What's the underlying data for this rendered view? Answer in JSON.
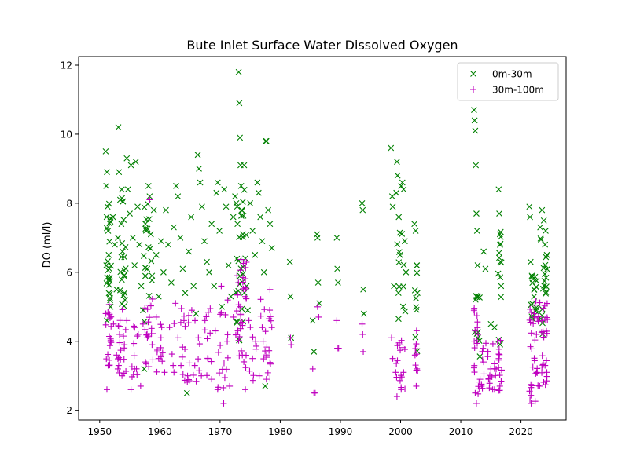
{
  "chart_data": {
    "type": "scatter",
    "title": "Bute Inlet Surface Water Dissolved Oxygen",
    "xlabel": "",
    "ylabel": "DO (ml/l)",
    "xlim": [
      1946.5,
      2027.5
    ],
    "ylim": [
      1.72,
      12.25
    ],
    "xticks": [
      1950,
      1960,
      1970,
      1980,
      1990,
      2000,
      2010,
      2020
    ],
    "yticks": [
      2,
      4,
      6,
      8,
      10,
      12
    ],
    "grid": false,
    "legend": "top-right",
    "series": [
      {
        "name": "0m-30m",
        "marker": "x",
        "color": "#008000",
        "points": [
          [
            1951.0,
            9.5
          ],
          [
            1951.2,
            8.9
          ],
          [
            1951.1,
            8.5
          ],
          [
            1951.3,
            7.9
          ],
          [
            1951.4,
            7.2
          ],
          [
            1951.5,
            6.5
          ],
          [
            1951.6,
            5.8
          ],
          [
            1951.8,
            5.0
          ],
          [
            1951.2,
            4.6
          ],
          [
            1951.6,
            6.1
          ],
          [
            1952.2,
            7.6
          ],
          [
            1952.5,
            6.8
          ],
          [
            1952.8,
            5.5
          ],
          [
            1953.1,
            10.2
          ],
          [
            1953.2,
            8.9
          ],
          [
            1953.4,
            8.1
          ],
          [
            1953.6,
            7.4
          ],
          [
            1953.8,
            6.6
          ],
          [
            1954.0,
            5.9
          ],
          [
            1954.2,
            5.2
          ],
          [
            1954.5,
            9.3
          ],
          [
            1954.7,
            8.4
          ],
          [
            1955.0,
            7.7
          ],
          [
            1955.2,
            9.1
          ],
          [
            1955.5,
            7.0
          ],
          [
            1955.8,
            6.2
          ],
          [
            1956.0,
            9.2
          ],
          [
            1956.3,
            7.9
          ],
          [
            1956.6,
            6.8
          ],
          [
            1956.9,
            5.6
          ],
          [
            1957.2,
            4.9
          ],
          [
            1957.4,
            3.2
          ],
          [
            1957.6,
            7.4
          ],
          [
            1957.9,
            6.1
          ],
          [
            1958.1,
            8.5
          ],
          [
            1958.3,
            8.2
          ],
          [
            1958.5,
            7.1
          ],
          [
            1958.7,
            5.9
          ],
          [
            1959.0,
            7.8
          ],
          [
            1959.4,
            6.5
          ],
          [
            1959.8,
            5.3
          ],
          [
            1960.2,
            6.9
          ],
          [
            1960.6,
            6.0
          ],
          [
            1961.0,
            7.8
          ],
          [
            1961.4,
            6.8
          ],
          [
            1961.9,
            5.7
          ],
          [
            1962.3,
            7.3
          ],
          [
            1962.7,
            8.5
          ],
          [
            1963.0,
            8.2
          ],
          [
            1963.4,
            7.0
          ],
          [
            1963.8,
            6.1
          ],
          [
            1964.2,
            5.4
          ],
          [
            1964.5,
            2.5
          ],
          [
            1964.8,
            6.6
          ],
          [
            1965.2,
            7.6
          ],
          [
            1965.6,
            5.6
          ],
          [
            1966.0,
            4.8
          ],
          [
            1966.3,
            9.4
          ],
          [
            1966.5,
            9.0
          ],
          [
            1966.7,
            8.6
          ],
          [
            1967.0,
            7.9
          ],
          [
            1967.4,
            6.9
          ],
          [
            1967.8,
            6.3
          ],
          [
            1968.2,
            6.0
          ],
          [
            1968.6,
            7.4
          ],
          [
            1969.0,
            5.6
          ],
          [
            1969.4,
            8.3
          ],
          [
            1969.6,
            8.6
          ],
          [
            1969.9,
            7.2
          ],
          [
            1970.3,
            5.0
          ],
          [
            1970.7,
            8.4
          ],
          [
            1971.0,
            7.9
          ],
          [
            1971.4,
            6.2
          ],
          [
            1971.8,
            5.3
          ],
          [
            1972.2,
            7.6
          ],
          [
            1972.5,
            8.2
          ],
          [
            1972.7,
            8.0
          ],
          [
            1972.9,
            7.4
          ],
          [
            1973.1,
            11.8
          ],
          [
            1973.2,
            10.9
          ],
          [
            1973.3,
            9.9
          ],
          [
            1973.4,
            9.1
          ],
          [
            1973.5,
            8.5
          ],
          [
            1973.6,
            7.8
          ],
          [
            1973.8,
            7.1
          ],
          [
            1974.0,
            9.1
          ],
          [
            1974.2,
            6.4
          ],
          [
            1974.4,
            5.6
          ],
          [
            1974.6,
            4.9
          ],
          [
            1975.0,
            8.0
          ],
          [
            1975.4,
            7.2
          ],
          [
            1975.8,
            6.5
          ],
          [
            1976.2,
            8.6
          ],
          [
            1976.4,
            8.3
          ],
          [
            1976.7,
            7.6
          ],
          [
            1977.0,
            6.9
          ],
          [
            1977.3,
            6.0
          ],
          [
            1977.5,
            2.7
          ],
          [
            1977.6,
            9.8
          ],
          [
            1977.7,
            9.8
          ],
          [
            1978.0,
            7.8
          ],
          [
            1978.3,
            7.4
          ],
          [
            1978.6,
            6.7
          ],
          [
            1981.6,
            6.3
          ],
          [
            1981.7,
            5.3
          ],
          [
            1981.8,
            4.1
          ],
          [
            1985.4,
            4.6
          ],
          [
            1985.6,
            3.7
          ],
          [
            1986.1,
            7.1
          ],
          [
            1986.2,
            7.0
          ],
          [
            1986.3,
            5.7
          ],
          [
            1986.5,
            5.1
          ],
          [
            1989.4,
            7.0
          ],
          [
            1989.5,
            6.1
          ],
          [
            1989.6,
            5.7
          ],
          [
            1993.6,
            8.0
          ],
          [
            1993.7,
            7.8
          ],
          [
            1993.8,
            5.5
          ],
          [
            1993.9,
            4.8
          ],
          [
            1998.4,
            9.6
          ],
          [
            1998.6,
            8.2
          ],
          [
            1998.7,
            7.9
          ],
          [
            1998.9,
            5.6
          ],
          [
            1999.3,
            8.3
          ],
          [
            1999.4,
            9.2
          ],
          [
            1999.5,
            8.8
          ],
          [
            1999.7,
            7.6
          ],
          [
            1999.9,
            6.5
          ],
          [
            2000.1,
            8.5
          ],
          [
            2000.3,
            8.6
          ],
          [
            2000.5,
            8.4
          ],
          [
            2000.7,
            6.9
          ],
          [
            2000.9,
            6.0
          ],
          [
            2002.3,
            7.4
          ],
          [
            2002.5,
            7.2
          ],
          [
            2002.7,
            6.2
          ],
          [
            2002.8,
            5.4
          ],
          [
            2012.2,
            10.7
          ],
          [
            2012.3,
            10.4
          ],
          [
            2012.4,
            10.1
          ],
          [
            2012.5,
            9.1
          ],
          [
            2012.6,
            7.7
          ],
          [
            2012.7,
            7.2
          ],
          [
            2012.8,
            6.2
          ],
          [
            2012.9,
            5.3
          ],
          [
            2013.8,
            6.6
          ],
          [
            2014.1,
            6.1
          ],
          [
            2015.0,
            4.5
          ],
          [
            2015.6,
            4.4
          ],
          [
            2016.3,
            8.4
          ],
          [
            2016.4,
            7.7
          ],
          [
            2016.5,
            7.1
          ],
          [
            2016.6,
            6.3
          ],
          [
            2016.7,
            5.6
          ],
          [
            2021.4,
            7.9
          ],
          [
            2021.5,
            7.6
          ],
          [
            2021.6,
            6.3
          ],
          [
            2021.8,
            5.9
          ],
          [
            2022.2,
            5.5
          ],
          [
            2023.2,
            7.3
          ],
          [
            2023.5,
            7.8
          ],
          [
            2023.8,
            7.5
          ],
          [
            2024.1,
            7.2
          ],
          [
            2024.3,
            6.5
          ]
        ],
        "bands": [
          [
            1951.0,
            1951.9,
            4.6,
            8.0,
            20
          ],
          [
            1953.0,
            1954.6,
            5.0,
            8.6,
            20
          ],
          [
            1957.3,
            1958.7,
            3.4,
            8.2,
            16
          ],
          [
            1972.6,
            1974.4,
            4.0,
            8.4,
            26
          ],
          [
            1999.3,
            2000.9,
            3.8,
            7.2,
            12
          ],
          [
            2002.3,
            2002.9,
            3.6,
            7.4,
            8
          ],
          [
            2012.3,
            2013.2,
            3.5,
            5.4,
            10
          ],
          [
            2016.2,
            2016.8,
            3.6,
            7.2,
            12
          ],
          [
            2021.6,
            2022.8,
            4.6,
            6.0,
            16
          ],
          [
            2023.2,
            2024.4,
            4.2,
            7.0,
            20
          ]
        ]
      },
      {
        "name": "30m-100m",
        "marker": "+",
        "color": "#bf00bf",
        "points": [
          [
            1951.2,
            2.6
          ],
          [
            1951.5,
            3.3
          ],
          [
            1951.8,
            4.0
          ],
          [
            1952.3,
            4.5
          ],
          [
            1952.8,
            3.6
          ],
          [
            1953.3,
            4.2
          ],
          [
            1953.7,
            3.0
          ],
          [
            1954.1,
            3.9
          ],
          [
            1954.5,
            4.6
          ],
          [
            1955.2,
            2.6
          ],
          [
            1955.8,
            3.2
          ],
          [
            1956.4,
            4.2
          ],
          [
            1956.8,
            2.7
          ],
          [
            1957.2,
            4.5
          ],
          [
            1957.6,
            3.4
          ],
          [
            1958.3,
            8.1
          ],
          [
            1958.7,
            3.9
          ],
          [
            1959.4,
            4.7
          ],
          [
            1959.8,
            3.5
          ],
          [
            1960.3,
            4.4
          ],
          [
            1960.8,
            3.1
          ],
          [
            1961.6,
            4.4
          ],
          [
            1962.2,
            3.3
          ],
          [
            1962.6,
            5.1
          ],
          [
            1963.0,
            4.1
          ],
          [
            1963.5,
            3.3
          ],
          [
            1964.0,
            4.6
          ],
          [
            1964.6,
            3.0
          ],
          [
            1965.3,
            4.9
          ],
          [
            1965.8,
            3.3
          ],
          [
            1966.4,
            4.1
          ],
          [
            1966.9,
            3.0
          ],
          [
            1967.5,
            4.6
          ],
          [
            1968.0,
            3.5
          ],
          [
            1968.6,
            2.9
          ],
          [
            1969.2,
            4.3
          ],
          [
            1969.6,
            2.6
          ],
          [
            1970.2,
            5.6
          ],
          [
            1970.6,
            2.2
          ],
          [
            1971.2,
            4.0
          ],
          [
            1971.6,
            2.7
          ],
          [
            1972.2,
            4.7
          ],
          [
            1972.8,
            5.9
          ],
          [
            1973.3,
            5.0
          ],
          [
            1973.7,
            3.6
          ],
          [
            1974.2,
            2.6
          ],
          [
            1974.8,
            4.6
          ],
          [
            1975.4,
            3.5
          ],
          [
            1975.9,
            4.0
          ],
          [
            1976.5,
            3.0
          ],
          [
            1977.0,
            4.4
          ],
          [
            1977.7,
            2.9
          ],
          [
            1978.3,
            5.5
          ],
          [
            1978.6,
            4.4
          ],
          [
            1981.7,
            4.1
          ],
          [
            1981.8,
            3.9
          ],
          [
            1985.4,
            3.2
          ],
          [
            1985.6,
            2.5
          ],
          [
            1985.8,
            2.5
          ],
          [
            1986.2,
            5.0
          ],
          [
            1986.4,
            4.7
          ],
          [
            1989.4,
            4.6
          ],
          [
            1989.5,
            3.8
          ],
          [
            1989.7,
            3.8
          ],
          [
            1993.6,
            4.5
          ],
          [
            1993.7,
            4.2
          ],
          [
            1993.8,
            3.7
          ],
          [
            1998.5,
            4.1
          ],
          [
            1998.7,
            3.5
          ],
          [
            1999.2,
            3.1
          ],
          [
            1999.4,
            2.4
          ],
          [
            1999.8,
            3.9
          ],
          [
            2000.1,
            2.6
          ],
          [
            2000.5,
            3.1
          ],
          [
            2002.4,
            3.6
          ],
          [
            2002.6,
            2.7
          ],
          [
            2002.7,
            3.2
          ],
          [
            2012.2,
            4.9
          ],
          [
            2012.4,
            2.5
          ],
          [
            2012.6,
            2.2
          ],
          [
            2013.2,
            2.9
          ],
          [
            2013.8,
            3.4
          ],
          [
            2014.4,
            3.7
          ],
          [
            2015.0,
            3.2
          ],
          [
            2015.6,
            2.6
          ],
          [
            2016.1,
            4.0
          ],
          [
            2016.5,
            2.7
          ],
          [
            2021.5,
            2.3
          ],
          [
            2021.7,
            2.2
          ],
          [
            2022.2,
            4.8
          ],
          [
            2022.6,
            3.1
          ],
          [
            2023.1,
            2.7
          ],
          [
            2023.5,
            4.6
          ],
          [
            2024.0,
            3.3
          ],
          [
            2024.3,
            3.1
          ]
        ],
        "bands": [
          [
            1951.0,
            1951.9,
            3.2,
            5.1,
            18
          ],
          [
            1953.0,
            1954.6,
            2.9,
            5.1,
            18
          ],
          [
            1955.3,
            1956.3,
            2.9,
            4.5,
            10
          ],
          [
            1957.3,
            1958.9,
            3.2,
            5.3,
            20
          ],
          [
            1959.3,
            1960.5,
            3.1,
            4.6,
            10
          ],
          [
            1962.0,
            1966.8,
            2.8,
            5.0,
            24
          ],
          [
            1967.0,
            1971.8,
            2.6,
            5.2,
            24
          ],
          [
            1972.6,
            1974.4,
            3.2,
            6.4,
            36
          ],
          [
            1974.6,
            1978.6,
            2.8,
            5.3,
            26
          ],
          [
            1999.3,
            2000.9,
            2.6,
            4.2,
            14
          ],
          [
            2002.3,
            2002.9,
            2.9,
            4.4,
            8
          ],
          [
            2012.2,
            2013.2,
            2.3,
            5.2,
            18
          ],
          [
            2013.4,
            2016.0,
            2.6,
            4.1,
            22
          ],
          [
            2016.2,
            2016.8,
            2.5,
            4.2,
            12
          ],
          [
            2021.4,
            2022.8,
            2.2,
            5.3,
            26
          ],
          [
            2022.8,
            2024.4,
            2.6,
            5.2,
            26
          ]
        ]
      }
    ]
  }
}
